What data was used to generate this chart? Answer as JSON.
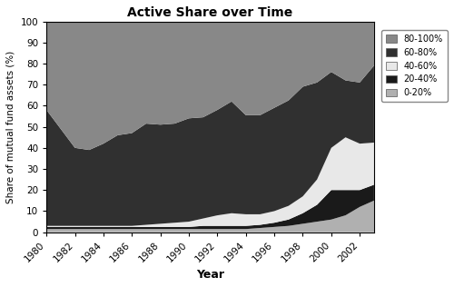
{
  "title": "Active Share over Time",
  "xlabel": "Year",
  "ylabel": "Share of mutual fund assets (%)",
  "years": [
    1980,
    1981,
    1982,
    1983,
    1984,
    1985,
    1986,
    1987,
    1988,
    1989,
    1990,
    1991,
    1992,
    1993,
    1994,
    1995,
    1996,
    1997,
    1998,
    1999,
    2000,
    2001,
    2002,
    2003
  ],
  "data_0_20": [
    1.5,
    1.5,
    1.5,
    1.5,
    1.5,
    1.5,
    1.5,
    1.5,
    1.5,
    1.5,
    1.5,
    1.5,
    1.5,
    1.5,
    1.5,
    2.0,
    2.5,
    3.0,
    4.0,
    5.0,
    6.0,
    8.0,
    12.0,
    15.0
  ],
  "data_20_40": [
    1.0,
    1.0,
    1.0,
    1.0,
    1.0,
    1.0,
    1.0,
    1.0,
    1.0,
    1.0,
    1.0,
    1.5,
    1.5,
    1.5,
    1.5,
    1.5,
    2.0,
    3.0,
    5.0,
    8.0,
    14.0,
    12.0,
    8.0,
    7.5
  ],
  "data_40_60": [
    0.5,
    0.5,
    0.5,
    0.5,
    0.5,
    0.5,
    0.5,
    1.0,
    1.5,
    2.0,
    2.5,
    3.5,
    5.0,
    6.0,
    5.5,
    5.0,
    5.5,
    6.5,
    8.0,
    12.0,
    20.0,
    25.0,
    22.0,
    20.0
  ],
  "data_60_80": [
    55.0,
    46.0,
    37.0,
    36.0,
    39.0,
    43.0,
    44.0,
    48.0,
    47.0,
    47.0,
    49.0,
    48.0,
    50.0,
    53.0,
    47.0,
    47.0,
    49.0,
    50.0,
    52.0,
    46.0,
    36.0,
    27.0,
    29.0,
    36.5
  ],
  "data_80_100": [
    42.0,
    51.0,
    60.0,
    61.0,
    58.0,
    54.0,
    53.0,
    48.5,
    49.0,
    48.5,
    46.0,
    45.5,
    42.0,
    38.0,
    44.5,
    44.5,
    41.0,
    37.5,
    31.0,
    29.0,
    24.0,
    28.0,
    29.0,
    21.0
  ],
  "colors": {
    "0_20": "#b0b0b0",
    "20_40": "#1a1a1a",
    "40_60": "#e8e8e8",
    "60_80": "#303030",
    "80_100": "#888888"
  },
  "legend_labels": [
    "80-100%",
    "60-80%",
    "40-60%",
    "20-40%",
    "0-20%"
  ],
  "ylim": [
    0,
    100
  ],
  "xtick_years": [
    1980,
    1982,
    1984,
    1986,
    1988,
    1990,
    1992,
    1994,
    1996,
    1998,
    2000,
    2002
  ]
}
